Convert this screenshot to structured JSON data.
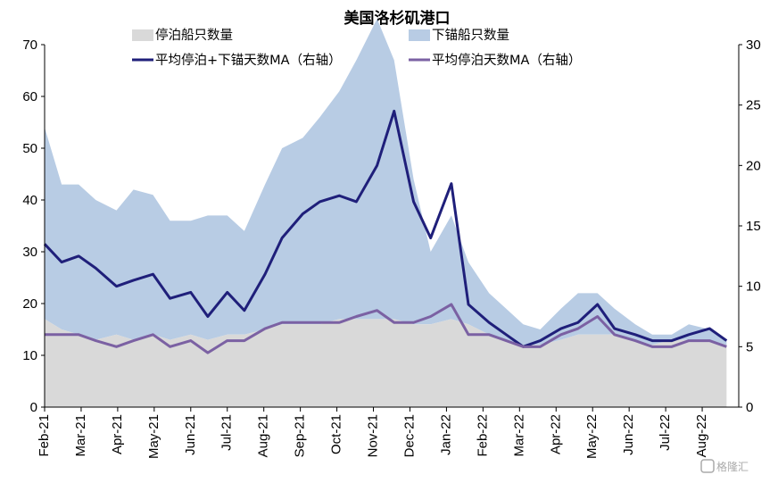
{
  "chart_data": {
    "type": "area",
    "title": "美国洛杉矶港口",
    "colors": {
      "berthed": "#d9d9d9",
      "anchored": "#b8cce4",
      "total_ma": "#1f1f7a",
      "berthed_ma": "#7b61a3"
    },
    "left_axis": {
      "ylim": [
        0,
        70
      ],
      "ticks": [
        "0",
        "10",
        "20",
        "30",
        "40",
        "50",
        "60",
        "70"
      ]
    },
    "right_axis": {
      "ylim": [
        0,
        30
      ],
      "ticks": [
        "0",
        "5",
        "10",
        "15",
        "20",
        "25",
        "30"
      ]
    },
    "x_ticks": [
      "Feb-21",
      "Mar-21",
      "Apr-21",
      "May-21",
      "Jun-21",
      "Jul-21",
      "Aug-21",
      "Sep-21",
      "Oct-21",
      "Nov-21",
      "Dec-21",
      "Jan-22",
      "Feb-22",
      "Mar-22",
      "Apr-22",
      "May-22",
      "Jun-22",
      "Jul-22",
      "Aug-22"
    ],
    "x": [
      "2021-02-01",
      "2021-02-15",
      "2021-03-01",
      "2021-03-15",
      "2021-04-01",
      "2021-04-15",
      "2021-05-01",
      "2021-05-15",
      "2021-06-01",
      "2021-06-15",
      "2021-07-01",
      "2021-07-15",
      "2021-08-01",
      "2021-08-15",
      "2021-09-01",
      "2021-09-15",
      "2021-10-01",
      "2021-10-15",
      "2021-11-01",
      "2021-11-15",
      "2021-12-01",
      "2021-12-15",
      "2022-01-01",
      "2022-01-15",
      "2022-02-01",
      "2022-02-15",
      "2022-03-01",
      "2022-03-15",
      "2022-04-01",
      "2022-04-15",
      "2022-05-01",
      "2022-05-15",
      "2022-06-01",
      "2022-06-15",
      "2022-07-01",
      "2022-07-15",
      "2022-08-01",
      "2022-08-15"
    ],
    "series": [
      {
        "name": "停泊船只数量",
        "type": "area",
        "axis": "left",
        "values": [
          17,
          15,
          14,
          13,
          14,
          13,
          14,
          13,
          14,
          13,
          14,
          14,
          15,
          16,
          16,
          16,
          17,
          17,
          17,
          17,
          16,
          16,
          17,
          16,
          14,
          13,
          12,
          12,
          13,
          14,
          14,
          14,
          13,
          12,
          13,
          13,
          13,
          12
        ]
      },
      {
        "name": "下锚船只数量",
        "type": "area",
        "axis": "left",
        "values": [
          37,
          28,
          29,
          27,
          24,
          29,
          27,
          23,
          22,
          24,
          23,
          20,
          28,
          34,
          36,
          40,
          44,
          50,
          58,
          50,
          28,
          14,
          20,
          12,
          8,
          6,
          4,
          3,
          6,
          8,
          8,
          5,
          3,
          2,
          1,
          3,
          2,
          1
        ]
      },
      {
        "name": "平均停泊+下锚天数MA（右轴）",
        "type": "line",
        "axis": "right",
        "values": [
          13.5,
          12,
          12.5,
          11.5,
          10,
          10.5,
          11,
          9,
          9.5,
          7.5,
          9.5,
          8,
          11,
          14,
          16,
          17,
          17.5,
          17,
          20,
          24.5,
          17,
          14,
          18.5,
          8.5,
          7,
          6,
          5,
          5.5,
          6.5,
          7,
          8.5,
          6.5,
          6,
          5.5,
          5.5,
          6,
          6.5,
          5.5
        ]
      },
      {
        "name": "平均停泊天数MA（右轴）",
        "type": "line",
        "axis": "right",
        "values": [
          6,
          6,
          6,
          5.5,
          5,
          5.5,
          6,
          5,
          5.5,
          4.5,
          5.5,
          5.5,
          6.5,
          7,
          7,
          7,
          7,
          7.5,
          8,
          7,
          7,
          7.5,
          8.5,
          6,
          6,
          5.5,
          5,
          5,
          6,
          6.5,
          7.5,
          6,
          5.5,
          5,
          5,
          5.5,
          5.5,
          5
        ]
      }
    ],
    "legend_position": "top",
    "grid": false
  },
  "watermark": "格隆汇"
}
